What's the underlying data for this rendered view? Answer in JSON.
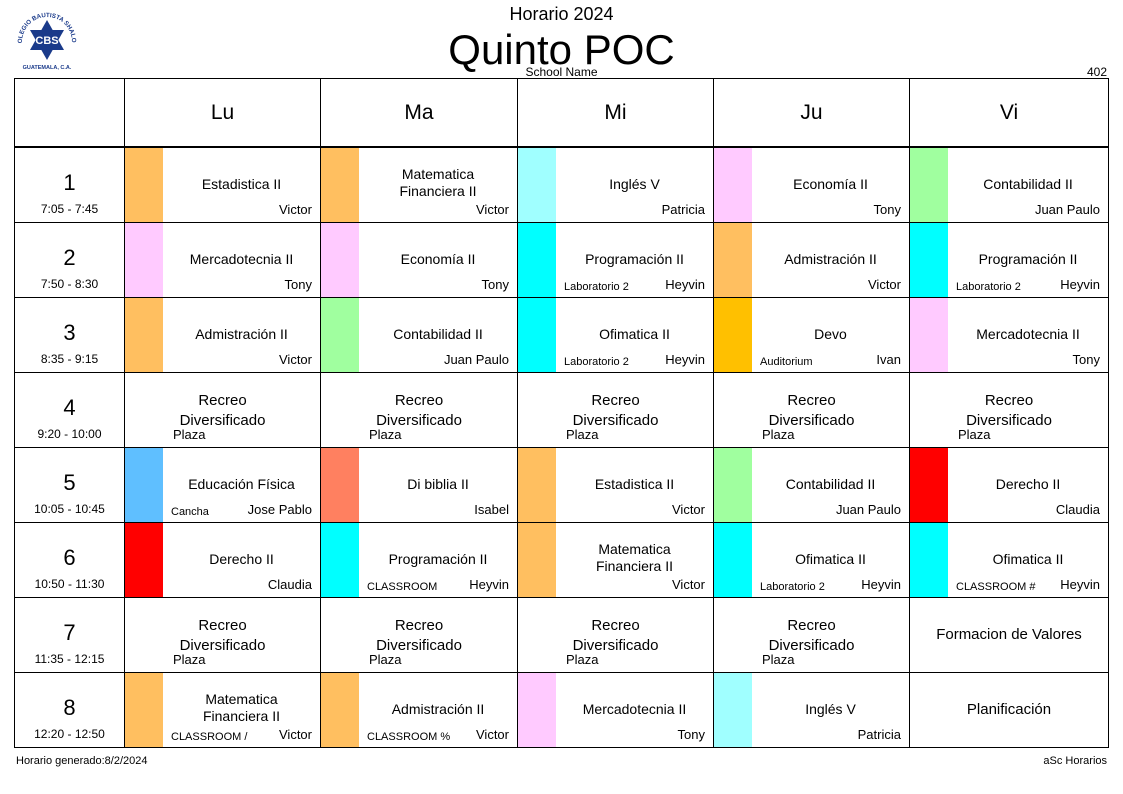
{
  "header": {
    "title": "Horario 2024",
    "class_name": "Quinto POC",
    "school_name": "School Name",
    "room_number": "402",
    "logo": {
      "text_top": "COLEGIO BAUTISTA SHALOM",
      "text_mid": "CBS",
      "text_bottom": "GUATEMALA, C.A."
    }
  },
  "footer": {
    "generated": "Horario generado:8/2/2024",
    "brand": "aSc Horarios"
  },
  "days": [
    "Lu",
    "Ma",
    "Mi",
    "Ju",
    "Vi"
  ],
  "colors": {
    "orange": "#ffbf60",
    "pink": "#ffcaff",
    "lightcyan": "#a0ffff",
    "cyan": "#00ffff",
    "green": "#a0ff9f",
    "amber": "#ffc000",
    "blue": "#5fbfff",
    "coral": "#ff8060",
    "red": "#ff0000"
  },
  "periods": [
    {
      "num": "1",
      "time": "7:05 - 7:45",
      "cells": [
        {
          "type": "lesson",
          "color": "#ffbf60",
          "subject": "Estadistica II",
          "teacher": "Victor",
          "room": ""
        },
        {
          "type": "lesson",
          "color": "#ffbf60",
          "subject": "Matematica Financiera II",
          "teacher": "Victor",
          "room": ""
        },
        {
          "type": "lesson",
          "color": "#a0ffff",
          "subject": "Inglés V",
          "teacher": "Patricia",
          "room": ""
        },
        {
          "type": "lesson",
          "color": "#ffcaff",
          "subject": "Economía II",
          "teacher": "Tony",
          "room": ""
        },
        {
          "type": "lesson",
          "color": "#a0ff9f",
          "subject": "Contabilidad II",
          "teacher": "Juan Paulo",
          "room": ""
        }
      ]
    },
    {
      "num": "2",
      "time": "7:50 - 8:30",
      "cells": [
        {
          "type": "lesson",
          "color": "#ffcaff",
          "subject": "Mercadotecnia II",
          "teacher": "Tony",
          "room": ""
        },
        {
          "type": "lesson",
          "color": "#ffcaff",
          "subject": "Economía II",
          "teacher": "Tony",
          "room": ""
        },
        {
          "type": "lesson",
          "color": "#00ffff",
          "subject": "Programación II",
          "teacher": "Heyvin",
          "room": "Laboratorio 2"
        },
        {
          "type": "lesson",
          "color": "#ffbf60",
          "subject": "Admistración II",
          "teacher": "Victor",
          "room": ""
        },
        {
          "type": "lesson",
          "color": "#00ffff",
          "subject": "Programación II",
          "teacher": "Heyvin",
          "room": "Laboratorio 2"
        }
      ]
    },
    {
      "num": "3",
      "time": "8:35 - 9:15",
      "cells": [
        {
          "type": "lesson",
          "color": "#ffbf60",
          "subject": "Admistración II",
          "teacher": "Victor",
          "room": ""
        },
        {
          "type": "lesson",
          "color": "#a0ff9f",
          "subject": "Contabilidad II",
          "teacher": "Juan Paulo",
          "room": ""
        },
        {
          "type": "lesson",
          "color": "#00ffff",
          "subject": "Ofimatica II",
          "teacher": "Heyvin",
          "room": "Laboratorio 2"
        },
        {
          "type": "lesson",
          "color": "#ffc000",
          "subject": "Devo",
          "teacher": "Ivan",
          "room": "Auditorium"
        },
        {
          "type": "lesson",
          "color": "#ffcaff",
          "subject": "Mercadotecnia II",
          "teacher": "Tony",
          "room": ""
        }
      ]
    },
    {
      "num": "4",
      "time": "9:20 - 10:00",
      "cells": [
        {
          "type": "recess",
          "subject": "Recreo Diversificado",
          "room": "Plaza"
        },
        {
          "type": "recess",
          "subject": "Recreo Diversificado",
          "room": "Plaza"
        },
        {
          "type": "recess",
          "subject": "Recreo Diversificado",
          "room": "Plaza"
        },
        {
          "type": "recess",
          "subject": "Recreo Diversificado",
          "room": "Plaza"
        },
        {
          "type": "recess",
          "subject": "Recreo Diversificado",
          "room": "Plaza"
        }
      ]
    },
    {
      "num": "5",
      "time": "10:05 - 10:45",
      "cells": [
        {
          "type": "lesson",
          "color": "#5fbfff",
          "subject": "Educación Física",
          "teacher": "Jose Pablo",
          "room": "Cancha"
        },
        {
          "type": "lesson",
          "color": "#ff8060",
          "subject": "Di biblia II",
          "teacher": "Isabel",
          "room": ""
        },
        {
          "type": "lesson",
          "color": "#ffbf60",
          "subject": "Estadistica II",
          "teacher": "Victor",
          "room": ""
        },
        {
          "type": "lesson",
          "color": "#a0ff9f",
          "subject": "Contabilidad II",
          "teacher": "Juan Paulo",
          "room": ""
        },
        {
          "type": "lesson",
          "color": "#ff0000",
          "subject": "Derecho II",
          "teacher": "Claudia",
          "room": ""
        }
      ]
    },
    {
      "num": "6",
      "time": "10:50 - 11:30",
      "cells": [
        {
          "type": "lesson",
          "color": "#ff0000",
          "subject": "Derecho II",
          "teacher": "Claudia",
          "room": ""
        },
        {
          "type": "lesson",
          "color": "#00ffff",
          "subject": "Programación II",
          "teacher": "Heyvin",
          "room": "CLASSROOM"
        },
        {
          "type": "lesson",
          "color": "#ffbf60",
          "subject": "Matematica Financiera II",
          "teacher": "Victor",
          "room": ""
        },
        {
          "type": "lesson",
          "color": "#00ffff",
          "subject": "Ofimatica II",
          "teacher": "Heyvin",
          "room": "Laboratorio 2"
        },
        {
          "type": "lesson",
          "color": "#00ffff",
          "subject": "Ofimatica II",
          "teacher": "Heyvin",
          "room": "CLASSROOM #"
        }
      ]
    },
    {
      "num": "7",
      "time": "11:35 - 12:15",
      "cells": [
        {
          "type": "recess",
          "subject": "Recreo Diversificado",
          "room": "Plaza"
        },
        {
          "type": "recess",
          "subject": "Recreo Diversificado",
          "room": "Plaza"
        },
        {
          "type": "recess",
          "subject": "Recreo Diversificado",
          "room": "Plaza"
        },
        {
          "type": "recess",
          "subject": "Recreo Diversificado",
          "room": "Plaza"
        },
        {
          "type": "plain",
          "subject": "Formacion de Valores"
        }
      ]
    },
    {
      "num": "8",
      "time": "12:20 - 12:50",
      "cells": [
        {
          "type": "lesson",
          "color": "#ffbf60",
          "subject": "Matematica Financiera II",
          "teacher": "Victor",
          "room": "CLASSROOM /"
        },
        {
          "type": "lesson",
          "color": "#ffbf60",
          "subject": "Admistración II",
          "teacher": "Victor",
          "room": "CLASSROOM %"
        },
        {
          "type": "lesson",
          "color": "#ffcaff",
          "subject": "Mercadotecnia II",
          "teacher": "Tony",
          "room": ""
        },
        {
          "type": "lesson",
          "color": "#a0ffff",
          "subject": "Inglés V",
          "teacher": "Patricia",
          "room": ""
        },
        {
          "type": "plain",
          "subject": "Planificación"
        }
      ]
    }
  ]
}
